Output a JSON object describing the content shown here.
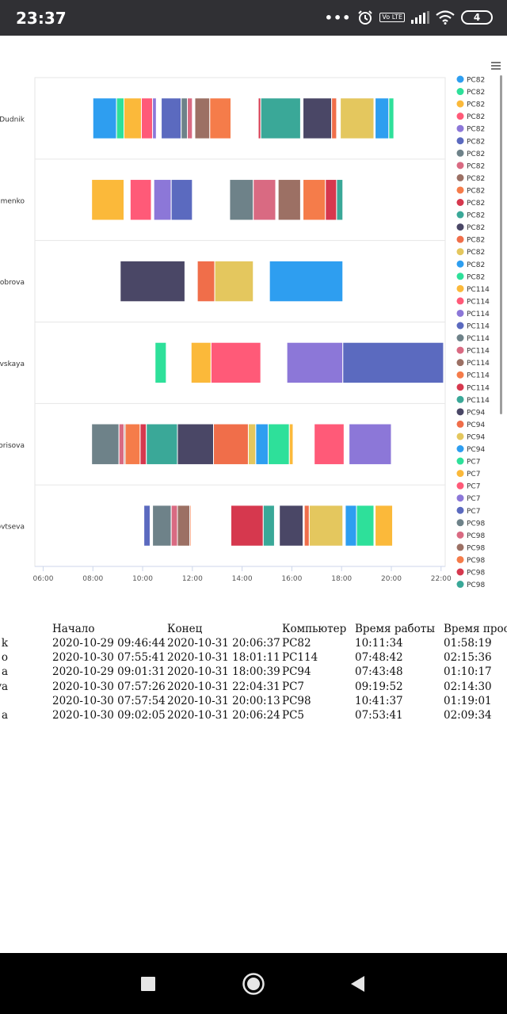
{
  "status_bar": {
    "time": "23:37",
    "network_badge": "Vo LTE",
    "battery": "4",
    "icons": [
      "more-dots-icon",
      "alarm-icon",
      "volte-icon",
      "signal-icon",
      "wifi-icon",
      "battery-icon"
    ]
  },
  "chart": {
    "menu_icon": "hamburger-menu-icon",
    "users": [
      "a.Dudnik",
      "simenko",
      "Bobrova",
      "ovskaya",
      "Borisova",
      "ovtseva"
    ],
    "x_ticks": [
      "06:00",
      "08:00",
      "10:00",
      "12:00",
      "14:00",
      "16:00",
      "18:00",
      "20:00",
      "22:00"
    ],
    "legend": [
      {
        "label": "PC82",
        "color": "#2e9ef0"
      },
      {
        "label": "PC82",
        "color": "#2ee09a"
      },
      {
        "label": "PC82",
        "color": "#fbb93a"
      },
      {
        "label": "PC82",
        "color": "#ff5a78"
      },
      {
        "label": "PC82",
        "color": "#8c77d8"
      },
      {
        "label": "PC82",
        "color": "#5b6abf"
      },
      {
        "label": "PC82",
        "color": "#6e8289"
      },
      {
        "label": "PC82",
        "color": "#d96a82"
      },
      {
        "label": "PC82",
        "color": "#9c7064"
      },
      {
        "label": "PC82",
        "color": "#f57c4a"
      },
      {
        "label": "PC82",
        "color": "#d6384e"
      },
      {
        "label": "PC82",
        "color": "#3aa898"
      },
      {
        "label": "PC82",
        "color": "#4a4766"
      },
      {
        "label": "PC82",
        "color": "#f06e4a"
      },
      {
        "label": "PC82",
        "color": "#e4c75e"
      },
      {
        "label": "PC82",
        "color": "#2e9ef0"
      },
      {
        "label": "PC82",
        "color": "#2ee09a"
      },
      {
        "label": "PC114",
        "color": "#fbb93a"
      },
      {
        "label": "PC114",
        "color": "#ff5a78"
      },
      {
        "label": "PC114",
        "color": "#8c77d8"
      },
      {
        "label": "PC114",
        "color": "#5b6abf"
      },
      {
        "label": "PC114",
        "color": "#6e8289"
      },
      {
        "label": "PC114",
        "color": "#d96a82"
      },
      {
        "label": "PC114",
        "color": "#9c7064"
      },
      {
        "label": "PC114",
        "color": "#f57c4a"
      },
      {
        "label": "PC114",
        "color": "#d6384e"
      },
      {
        "label": "PC114",
        "color": "#3aa898"
      },
      {
        "label": "PC94",
        "color": "#4a4766"
      },
      {
        "label": "PC94",
        "color": "#f06e4a"
      },
      {
        "label": "PC94",
        "color": "#e4c75e"
      },
      {
        "label": "PC94",
        "color": "#2e9ef0"
      },
      {
        "label": "PC7",
        "color": "#2ee09a"
      },
      {
        "label": "PC7",
        "color": "#fbb93a"
      },
      {
        "label": "PC7",
        "color": "#ff5a78"
      },
      {
        "label": "PC7",
        "color": "#8c77d8"
      },
      {
        "label": "PC7",
        "color": "#5b6abf"
      },
      {
        "label": "PC98",
        "color": "#6e8289"
      },
      {
        "label": "PC98",
        "color": "#d96a82"
      },
      {
        "label": "PC98",
        "color": "#9c7064"
      },
      {
        "label": "PC98",
        "color": "#f57c4a"
      },
      {
        "label": "PC98",
        "color": "#d6384e"
      },
      {
        "label": "PC98",
        "color": "#3aa898"
      }
    ]
  },
  "chart_data": {
    "type": "timeline",
    "x_axis": {
      "min": "05:40",
      "max": "22:10",
      "unit": "hours"
    },
    "rows": [
      {
        "user": "a.Dudnik",
        "segments": [
          {
            "start": 8.0,
            "end": 8.95,
            "color": "#2e9ef0"
          },
          {
            "start": 8.95,
            "end": 9.25,
            "color": "#2ee09a"
          },
          {
            "start": 9.25,
            "end": 9.95,
            "color": "#fbb93a"
          },
          {
            "start": 9.95,
            "end": 10.4,
            "color": "#ff5a78"
          },
          {
            "start": 10.4,
            "end": 10.55,
            "color": "#8c77d8"
          },
          {
            "start": 10.75,
            "end": 11.55,
            "color": "#5b6abf"
          },
          {
            "start": 11.55,
            "end": 11.8,
            "color": "#6e8289"
          },
          {
            "start": 11.8,
            "end": 12.0,
            "color": "#d96a82"
          },
          {
            "start": 12.1,
            "end": 12.7,
            "color": "#9c7064"
          },
          {
            "start": 12.7,
            "end": 13.55,
            "color": "#f57c4a"
          },
          {
            "start": 14.65,
            "end": 14.75,
            "color": "#d6384e"
          },
          {
            "start": 14.75,
            "end": 16.35,
            "color": "#3aa898"
          },
          {
            "start": 16.45,
            "end": 17.6,
            "color": "#4a4766"
          },
          {
            "start": 17.6,
            "end": 17.8,
            "color": "#f06e4a"
          },
          {
            "start": 17.95,
            "end": 19.3,
            "color": "#e4c75e"
          },
          {
            "start": 19.35,
            "end": 19.9,
            "color": "#2e9ef0"
          },
          {
            "start": 19.9,
            "end": 20.1,
            "color": "#2ee09a"
          }
        ]
      },
      {
        "user": "simenko",
        "segments": [
          {
            "start": 7.95,
            "end": 9.25,
            "color": "#fbb93a"
          },
          {
            "start": 9.5,
            "end": 10.35,
            "color": "#ff5a78"
          },
          {
            "start": 10.45,
            "end": 11.15,
            "color": "#8c77d8"
          },
          {
            "start": 11.15,
            "end": 12.0,
            "color": "#5b6abf"
          },
          {
            "start": 13.5,
            "end": 14.45,
            "color": "#6e8289"
          },
          {
            "start": 14.45,
            "end": 15.35,
            "color": "#d96a82"
          },
          {
            "start": 15.45,
            "end": 16.35,
            "color": "#9c7064"
          },
          {
            "start": 16.45,
            "end": 17.35,
            "color": "#f57c4a"
          },
          {
            "start": 17.35,
            "end": 17.8,
            "color": "#d6384e"
          },
          {
            "start": 17.8,
            "end": 18.05,
            "color": "#3aa898"
          }
        ]
      },
      {
        "user": "Bobrova",
        "segments": [
          {
            "start": 9.1,
            "end": 11.7,
            "color": "#4a4766"
          },
          {
            "start": 12.2,
            "end": 12.9,
            "color": "#f06e4a"
          },
          {
            "start": 12.9,
            "end": 14.45,
            "color": "#e4c75e"
          },
          {
            "start": 15.1,
            "end": 18.05,
            "color": "#2e9ef0"
          }
        ]
      },
      {
        "user": "ovskaya",
        "segments": [
          {
            "start": 10.5,
            "end": 10.95,
            "color": "#2ee09a"
          },
          {
            "start": 11.95,
            "end": 12.75,
            "color": "#fbb93a"
          },
          {
            "start": 12.75,
            "end": 14.75,
            "color": "#ff5a78"
          },
          {
            "start": 15.8,
            "end": 18.05,
            "color": "#8c77d8"
          },
          {
            "start": 18.05,
            "end": 22.1,
            "color": "#5b6abf"
          }
        ]
      },
      {
        "user": "Borisova",
        "segments": [
          {
            "start": 7.95,
            "end": 9.05,
            "color": "#6e8289"
          },
          {
            "start": 9.05,
            "end": 9.25,
            "color": "#d96a82"
          },
          {
            "start": 9.25,
            "end": 9.3,
            "color": "#9c7064"
          },
          {
            "start": 9.3,
            "end": 9.9,
            "color": "#f57c4a"
          },
          {
            "start": 9.9,
            "end": 10.15,
            "color": "#d6384e"
          },
          {
            "start": 10.15,
            "end": 11.4,
            "color": "#3aa898"
          },
          {
            "start": 11.4,
            "end": 12.85,
            "color": "#4a4766"
          },
          {
            "start": 12.85,
            "end": 14.25,
            "color": "#f06e4a"
          },
          {
            "start": 14.25,
            "end": 14.55,
            "color": "#e4c75e"
          },
          {
            "start": 14.55,
            "end": 15.05,
            "color": "#2e9ef0"
          },
          {
            "start": 15.05,
            "end": 15.9,
            "color": "#2ee09a"
          },
          {
            "start": 15.9,
            "end": 16.05,
            "color": "#fbb93a"
          },
          {
            "start": 16.9,
            "end": 18.1,
            "color": "#ff5a78"
          },
          {
            "start": 18.3,
            "end": 20.0,
            "color": "#8c77d8"
          }
        ]
      },
      {
        "user": "ovtseva",
        "segments": [
          {
            "start": 10.05,
            "end": 10.3,
            "color": "#5b6abf"
          },
          {
            "start": 10.4,
            "end": 11.15,
            "color": "#6e8289"
          },
          {
            "start": 11.15,
            "end": 11.4,
            "color": "#d96a82"
          },
          {
            "start": 11.4,
            "end": 11.9,
            "color": "#9c7064"
          },
          {
            "start": 11.9,
            "end": 11.95,
            "color": "#f57c4a"
          },
          {
            "start": 13.55,
            "end": 14.85,
            "color": "#d6384e"
          },
          {
            "start": 14.85,
            "end": 15.3,
            "color": "#3aa898"
          },
          {
            "start": 15.5,
            "end": 16.45,
            "color": "#4a4766"
          },
          {
            "start": 16.5,
            "end": 16.7,
            "color": "#f06e4a"
          },
          {
            "start": 16.7,
            "end": 18.05,
            "color": "#e4c75e"
          },
          {
            "start": 18.15,
            "end": 18.6,
            "color": "#2e9ef0"
          },
          {
            "start": 18.6,
            "end": 19.3,
            "color": "#2ee09a"
          },
          {
            "start": 19.35,
            "end": 20.05,
            "color": "#fbb93a"
          }
        ]
      }
    ]
  },
  "table": {
    "headers": {
      "start": "Начало",
      "end": "Конец",
      "pc": "Компьютер",
      "work": "Время работы",
      "idle": "Время прост"
    },
    "rows": [
      {
        "name": "k",
        "start": "2020-10-29 09:46:44",
        "end": "2020-10-31 20:06:37",
        "pc": "PC82",
        "work": "10:11:34",
        "idle": "01:58:19"
      },
      {
        "name": "o",
        "start": "2020-10-30 07:55:41",
        "end": "2020-10-31 18:01:11",
        "pc": "PC114",
        "work": "07:48:42",
        "idle": "02:15:36"
      },
      {
        "name": "a",
        "start": "2020-10-29 09:01:31",
        "end": "2020-10-31 18:00:39",
        "pc": "PC94",
        "work": "07:43:48",
        "idle": "01:10:17"
      },
      {
        "name": "vskaya",
        "start": "2020-10-30 07:57:26",
        "end": "2020-10-31 22:04:31",
        "pc": "PC7",
        "work": "09:19:52",
        "idle": "02:14:30"
      },
      {
        "name": "",
        "start": "2020-10-30 07:57:54",
        "end": "2020-10-31 20:00:13",
        "pc": "PC98",
        "work": "10:41:37",
        "idle": "01:19:01"
      },
      {
        "name": "a",
        "start": "2020-10-30 09:02:05",
        "end": "2020-10-31 20:06:24",
        "pc": "PC5",
        "work": "07:53:41",
        "idle": "02:09:34"
      }
    ]
  },
  "nav": {
    "buttons": [
      "recents-square-icon",
      "home-circle-icon",
      "back-triangle-icon"
    ]
  }
}
